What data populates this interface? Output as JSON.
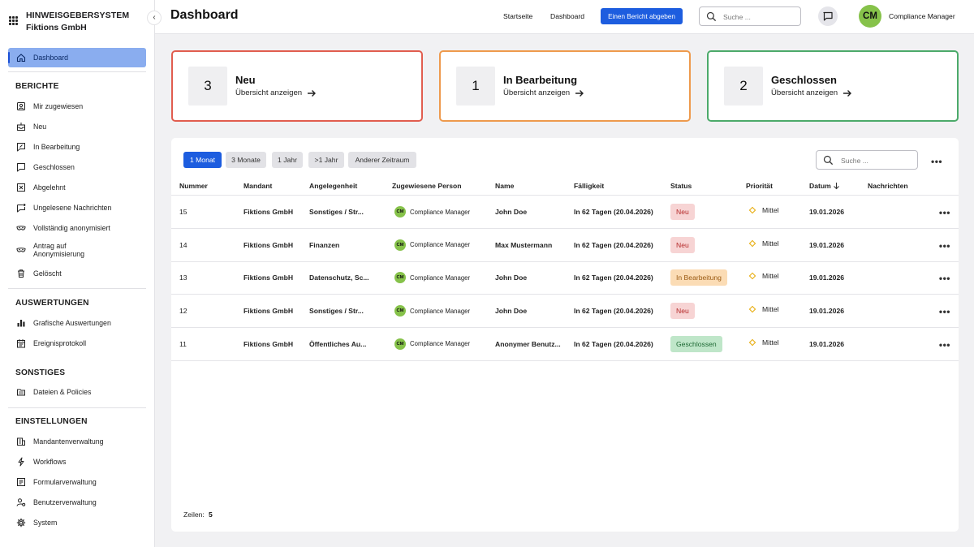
{
  "brand": {
    "title": "HINWEISGEBERSYSTEM",
    "subtitle": "Fiktions GmbH"
  },
  "sidebar": {
    "dashboard": "Dashboard",
    "sections": [
      "BERICHTE",
      "AUSWERTUNGEN",
      "SONSTIGES",
      "EINSTELLUNGEN"
    ],
    "berichte": [
      {
        "label": "Mir zugewiesen",
        "icon": "assigned-user-icon"
      },
      {
        "label": "Neu",
        "icon": "inbox-new-icon"
      },
      {
        "label": "In Bearbeitung",
        "icon": "chat-edit-icon"
      },
      {
        "label": "Geschlossen",
        "icon": "chat-closed-icon"
      },
      {
        "label": "Abgelehnt",
        "icon": "rejected-icon"
      },
      {
        "label": "Ungelesene Nachrichten",
        "icon": "unread-message-icon"
      },
      {
        "label": "Vollständig anonymisiert",
        "icon": "mask-icon"
      },
      {
        "label": "Antrag auf Anonymisierung",
        "icon": "mask-request-icon"
      },
      {
        "label": "Gelöscht",
        "icon": "trash-icon"
      }
    ],
    "auswertungen": [
      {
        "label": "Grafische Auswertungen",
        "icon": "bar-chart-icon"
      },
      {
        "label": "Ereignisprotokoll",
        "icon": "calendar-log-icon"
      }
    ],
    "sonstiges": [
      {
        "label": "Dateien & Policies",
        "icon": "folder-icon"
      }
    ],
    "einstellungen": [
      {
        "label": "Mandantenverwaltung",
        "icon": "building-icon"
      },
      {
        "label": "Workflows",
        "icon": "workflow-icon"
      },
      {
        "label": "Formularverwaltung",
        "icon": "form-icon"
      },
      {
        "label": "Benutzerverwaltung",
        "icon": "user-settings-icon"
      },
      {
        "label": "System",
        "icon": "gear-icon"
      }
    ]
  },
  "header": {
    "title": "Dashboard",
    "links": [
      "Startseite",
      "Dashboard"
    ],
    "report_button": "Einen Bericht abgeben",
    "search_placeholder": "Suche ...",
    "avatar_initials": "CM",
    "user_name": "Compliance Manager"
  },
  "stats": [
    {
      "count": "3",
      "label": "Neu",
      "link": "Übersicht anzeigen",
      "color": "#e15d4f"
    },
    {
      "count": "1",
      "label": "In Bearbeitung",
      "link": "Übersicht anzeigen",
      "color": "#ee9a4d"
    },
    {
      "count": "2",
      "label": "Geschlossen",
      "link": "Übersicht anzeigen",
      "color": "#4caa6a"
    }
  ],
  "filters": [
    "1 Monat",
    "3 Monate",
    "1 Jahr",
    ">1 Jahr",
    "Anderer Zeitraum"
  ],
  "table": {
    "search_placeholder": "Suche ...",
    "columns": [
      "Nummer",
      "Mandant",
      "Angelegenheit",
      "Zugewiesene Person",
      "Name",
      "Fälligkeit",
      "Status",
      "Priorität",
      "Datum",
      "Nachrichten"
    ],
    "rows": [
      {
        "nummer": "15",
        "mandant": "Fiktions GmbH",
        "angelegenheit": "Sonstiges / Str...",
        "initials": "CM",
        "person": "Compliance Manager",
        "name": "John Doe",
        "faelligkeit": "In 62 Tagen (20.04.2026)",
        "status": "Neu",
        "prioritaet": "Mittel",
        "datum": "19.01.2026"
      },
      {
        "nummer": "14",
        "mandant": "Fiktions GmbH",
        "angelegenheit": "Finanzen",
        "initials": "CM",
        "person": "Compliance Manager",
        "name": "Max Mustermann",
        "faelligkeit": "In 62 Tagen (20.04.2026)",
        "status": "Neu",
        "prioritaet": "Mittel",
        "datum": "19.01.2026"
      },
      {
        "nummer": "13",
        "mandant": "Fiktions GmbH",
        "angelegenheit": "Datenschutz, Sc...",
        "initials": "CM",
        "person": "Compliance Manager",
        "name": "John Doe",
        "faelligkeit": "In 62 Tagen (20.04.2026)",
        "status": "In Bearbeitung",
        "prioritaet": "Mittel",
        "datum": "19.01.2026"
      },
      {
        "nummer": "12",
        "mandant": "Fiktions GmbH",
        "angelegenheit": "Sonstiges / Str...",
        "initials": "CM",
        "person": "Compliance Manager",
        "name": "John Doe",
        "faelligkeit": "In 62 Tagen (20.04.2026)",
        "status": "Neu",
        "prioritaet": "Mittel",
        "datum": "19.01.2026"
      },
      {
        "nummer": "11",
        "mandant": "Fiktions GmbH",
        "angelegenheit": "Öffentliches Au...",
        "initials": "CM",
        "person": "Compliance Manager",
        "name": "Anonymer Benutz...",
        "faelligkeit": "In 62 Tagen (20.04.2026)",
        "status": "Geschlossen",
        "prioritaet": "Mittel",
        "datum": "19.01.2026"
      }
    ],
    "footer_label": "Zeilen:",
    "footer_value": "5"
  },
  "status_colors": {
    "Neu": {
      "bg": "#f7d4d4",
      "fg": "#b52a2a"
    },
    "In Bearbeitung": {
      "bg": "#fbdcb5",
      "fg": "#9a5a12"
    },
    "Geschlossen": {
      "bg": "#bfe6c9",
      "fg": "#1f6a35"
    }
  }
}
